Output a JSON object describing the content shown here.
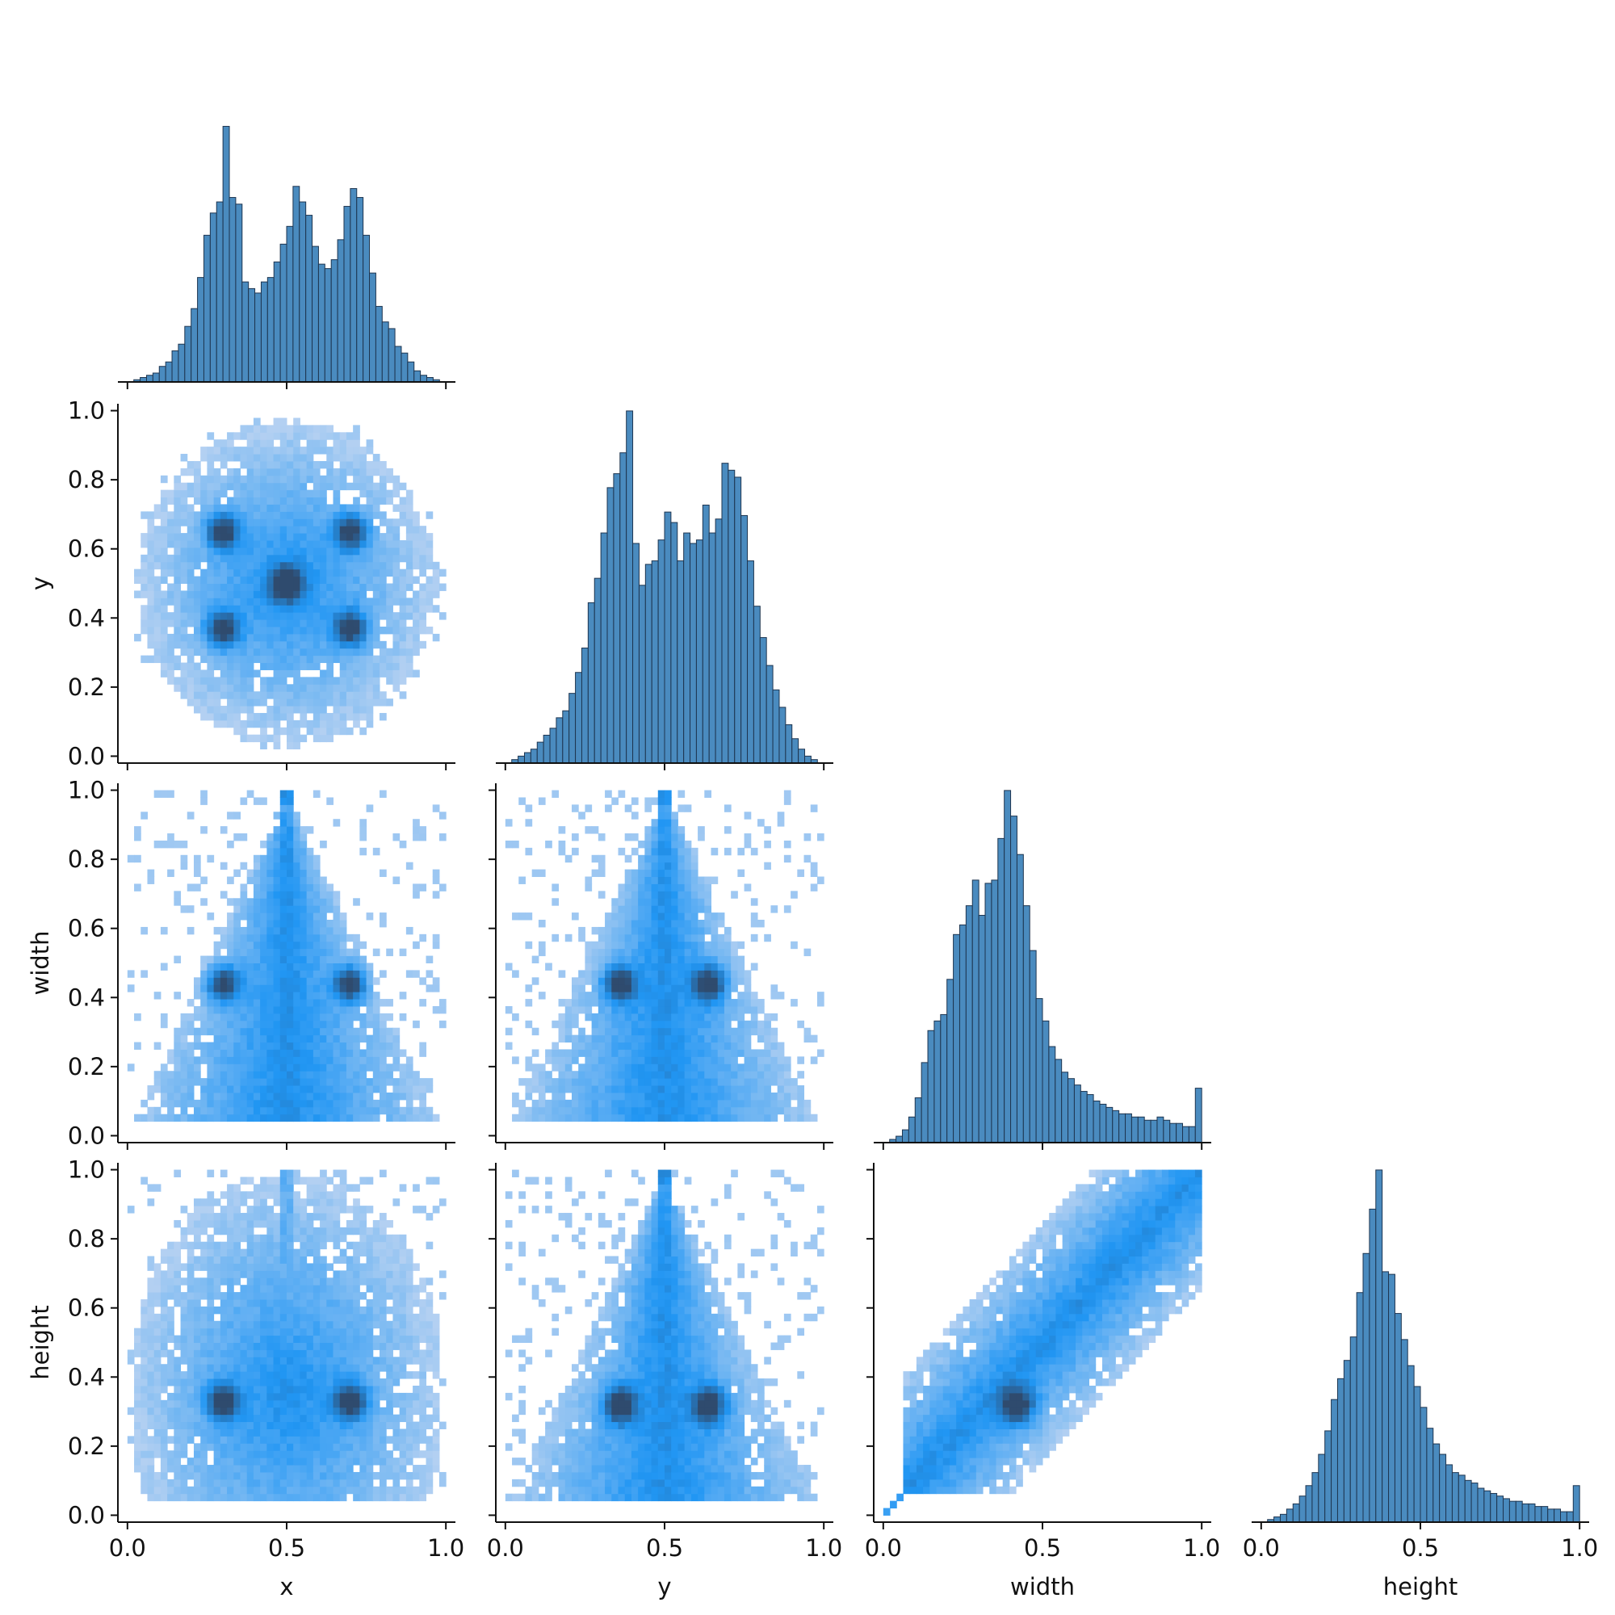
{
  "chart_data": {
    "type": "pairplot",
    "layout": "corner",
    "variables": [
      "x",
      "y",
      "width",
      "height"
    ],
    "ticks": [
      0.0,
      0.5,
      1.0
    ],
    "tick_labels": [
      "0.0",
      "0.5",
      "1.0"
    ],
    "y_ticks": [
      0.0,
      0.2,
      0.4,
      0.6,
      0.8,
      1.0
    ],
    "y_tick_labels": [
      "0.0",
      "0.2",
      "0.4",
      "0.6",
      "0.8",
      "1.0"
    ],
    "xlim": [
      -0.03,
      1.03
    ],
    "ylim": [
      -0.02,
      1.02
    ],
    "colors": {
      "bar": "#4a8bbf",
      "edge": "#1e3550",
      "heat_low": "#b3d0f2",
      "heat_mid": "#2196f3",
      "heat_high": "#2f4b6e"
    },
    "diagonal_histograms": [
      {
        "variable": "x",
        "bin_width": 0.02,
        "counts": [
          0,
          1,
          2,
          3,
          4,
          7,
          9,
          14,
          17,
          25,
          33,
          47,
          66,
          76,
          81,
          115,
          83,
          80,
          45,
          42,
          40,
          45,
          47,
          54,
          62,
          70,
          88,
          81,
          75,
          61,
          53,
          51,
          55,
          64,
          79,
          87,
          83,
          66,
          49,
          34,
          27,
          24,
          16,
          13,
          9,
          5,
          3,
          2,
          1,
          0
        ]
      },
      {
        "variable": "y",
        "bin_width": 0.02,
        "counts": [
          0,
          1,
          2,
          3,
          4,
          6,
          8,
          10,
          13,
          15,
          20,
          26,
          33,
          46,
          53,
          66,
          79,
          83,
          89,
          101,
          63,
          51,
          57,
          58,
          64,
          72,
          69,
          58,
          66,
          63,
          64,
          74,
          66,
          70,
          86,
          84,
          82,
          71,
          58,
          45,
          36,
          28,
          21,
          16,
          11,
          7,
          4,
          2,
          1,
          0
        ]
      },
      {
        "variable": "width",
        "bin_width": 0.02,
        "counts": [
          0,
          1,
          2,
          4,
          8,
          14,
          25,
          35,
          38,
          40,
          51,
          65,
          68,
          74,
          82,
          71,
          81,
          82,
          95,
          110,
          102,
          90,
          74,
          60,
          45,
          38,
          30,
          26,
          22,
          20,
          18,
          16,
          15,
          13,
          12,
          11,
          10,
          9,
          9,
          8,
          8,
          7,
          7,
          8,
          7,
          6,
          6,
          5,
          5,
          17
        ]
      },
      {
        "variable": "height",
        "bin_width": 0.02,
        "counts": [
          0,
          1,
          2,
          3,
          5,
          7,
          10,
          14,
          19,
          26,
          35,
          47,
          55,
          62,
          71,
          88,
          103,
          120,
          135,
          96,
          95,
          80,
          70,
          60,
          52,
          44,
          36,
          30,
          26,
          22,
          19,
          18,
          16,
          15,
          13,
          12,
          11,
          10,
          9,
          8,
          8,
          7,
          7,
          6,
          6,
          5,
          5,
          4,
          4,
          14
        ]
      }
    ],
    "heatmaps": [
      {
        "x": "x",
        "y": "y",
        "shape": "disk",
        "clusters": [
          [
            0.3,
            0.65
          ],
          [
            0.7,
            0.65
          ],
          [
            0.5,
            0.5
          ],
          [
            0.3,
            0.37
          ],
          [
            0.7,
            0.37
          ]
        ]
      },
      {
        "x": "x",
        "y": "width",
        "shape": "triangle",
        "apex": 0.5,
        "clusters": [
          [
            0.3,
            0.44
          ],
          [
            0.7,
            0.44
          ]
        ]
      },
      {
        "x": "y",
        "y": "width",
        "shape": "triangle",
        "apex": 0.5,
        "clusters": [
          [
            0.36,
            0.44
          ],
          [
            0.64,
            0.44
          ]
        ]
      },
      {
        "x": "x",
        "y": "height",
        "shape": "blob",
        "clusters": [
          [
            0.3,
            0.33
          ],
          [
            0.7,
            0.33
          ]
        ]
      },
      {
        "x": "y",
        "y": "height",
        "shape": "triangle",
        "apex": 0.5,
        "clusters": [
          [
            0.36,
            0.32
          ],
          [
            0.64,
            0.32
          ]
        ]
      },
      {
        "x": "width",
        "y": "height",
        "shape": "diagonal",
        "clusters": [
          [
            0.42,
            0.32
          ]
        ]
      }
    ]
  }
}
